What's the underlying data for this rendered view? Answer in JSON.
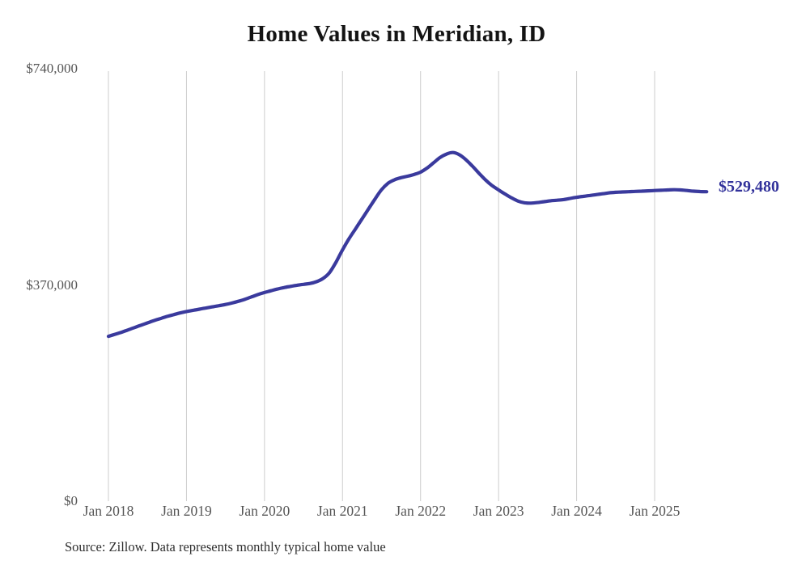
{
  "title": "Home Values in Meridian, ID",
  "end_label": "$529,480",
  "source": "Source: Zillow. Data represents monthly typical home value",
  "colors": {
    "line": "#3a3a9d",
    "end_label": "#32329b",
    "grid": "#cdcdcd",
    "axis_text": "#555555",
    "title_text": "#141414",
    "source_text": "#2e2e2e",
    "background": "#ffffff"
  },
  "y_axis": {
    "ticks": [
      "$0",
      "$370,000",
      "$740,000"
    ]
  },
  "x_axis": {
    "labels": [
      "Jan 2018",
      "Jan 2019",
      "Jan 2020",
      "Jan 2021",
      "Jan 2022",
      "Jan 2023",
      "Jan 2024",
      "Jan 2025"
    ]
  },
  "chart_data": {
    "type": "line",
    "title": "Home Values in Meridian, ID",
    "unit": "USD",
    "frequency": "monthly",
    "x_start": "Jan 2018",
    "x_end": "Sep 2025",
    "ylim": [
      0,
      740000
    ],
    "y_ticks": [
      0,
      370000,
      740000
    ],
    "y_tick_labels": [
      "$0",
      "$370,000",
      "$740,000"
    ],
    "x_tick_labels": [
      "Jan 2018",
      "Jan 2019",
      "Jan 2020",
      "Jan 2021",
      "Jan 2022",
      "Jan 2023",
      "Jan 2024",
      "Jan 2025"
    ],
    "grid": "vertical-only",
    "legend": "none",
    "end_value": 529480,
    "end_value_label": "$529,480",
    "values": [
      282000,
      285500,
      289000,
      293000,
      297000,
      301000,
      305000,
      309000,
      312500,
      316000,
      319000,
      322000,
      324500,
      326500,
      328500,
      330500,
      332500,
      334500,
      336500,
      339000,
      342000,
      345500,
      349500,
      353500,
      357000,
      360000,
      363000,
      365500,
      367500,
      369500,
      371000,
      372500,
      375500,
      381000,
      391000,
      409000,
      430000,
      449000,
      466000,
      483000,
      500000,
      517000,
      533000,
      544000,
      550000,
      553500,
      556000,
      559000,
      563000,
      570000,
      579000,
      588000,
      594000,
      596500,
      592500,
      584000,
      573000,
      561000,
      549500,
      540000,
      532500,
      525500,
      519000,
      513500,
      510500,
      510000,
      511000,
      512500,
      514000,
      515000,
      516000,
      518000,
      520000,
      521500,
      523000,
      524500,
      526000,
      527500,
      528500,
      529000,
      529500,
      530000,
      530500,
      531000,
      531500,
      532000,
      532500,
      533000,
      532500,
      531500,
      530500,
      529800,
      529480
    ]
  }
}
